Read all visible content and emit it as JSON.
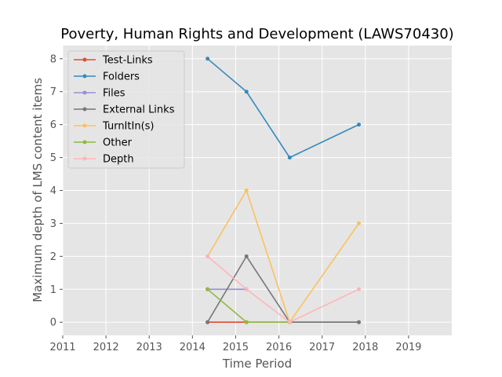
{
  "chart_data": {
    "type": "line",
    "title": "Poverty, Human Rights and Development (LAWS70430)",
    "xlabel": "Time Period",
    "ylabel": "Maximum depth of LMS content items",
    "xlim": [
      2011,
      2020
    ],
    "ylim": [
      -0.4,
      8.4
    ],
    "xticks": [
      2011,
      2012,
      2013,
      2014,
      2015,
      2016,
      2017,
      2018,
      2019
    ],
    "yticks": [
      0,
      1,
      2,
      3,
      4,
      5,
      6,
      7,
      8
    ],
    "grid": true,
    "legend_position": "top-left",
    "background": "#e5e5e5",
    "series": [
      {
        "name": "Test-Links",
        "color": "#e24a33",
        "x": [
          2014.35,
          2015.25,
          2016.25,
          2017.85
        ],
        "y": [
          0,
          0,
          0,
          0
        ]
      },
      {
        "name": "Folders",
        "color": "#348abd",
        "x": [
          2014.35,
          2015.25,
          2016.25,
          2017.85
        ],
        "y": [
          8,
          7,
          5,
          6
        ]
      },
      {
        "name": "Files",
        "color": "#988ed5",
        "x": [
          2014.35,
          2015.25
        ],
        "y": [
          1,
          1
        ]
      },
      {
        "name": "External Links",
        "color": "#777777",
        "x": [
          2014.35,
          2015.25,
          2016.25,
          2017.85
        ],
        "y": [
          0,
          2,
          0,
          0
        ]
      },
      {
        "name": "TurnItIn(s)",
        "color": "#fbc15e",
        "x": [
          2014.35,
          2015.25,
          2016.25,
          2017.85
        ],
        "y": [
          2,
          4,
          0,
          3
        ]
      },
      {
        "name": "Other",
        "color": "#8eba42",
        "x": [
          2014.35,
          2015.25,
          2016.25
        ],
        "y": [
          1,
          0,
          0
        ]
      },
      {
        "name": "Depth",
        "color": "#ffb5b8",
        "x": [
          2014.35,
          2015.25,
          2016.25,
          2017.85
        ],
        "y": [
          2,
          1,
          0,
          1
        ]
      }
    ]
  }
}
